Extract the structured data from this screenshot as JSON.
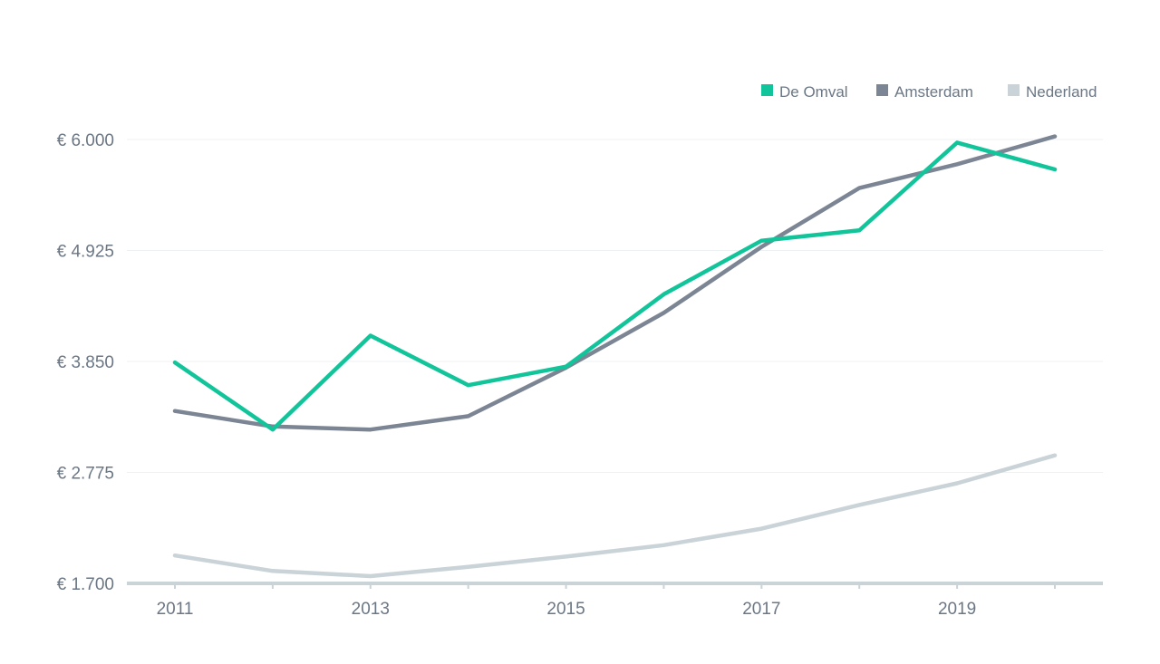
{
  "colors": {
    "De Omval": "#12c49a",
    "Amsterdam": "#7c8594",
    "Nederland": "#c9d3d8",
    "grid": "#eef1f3",
    "axis": "#c9d3d8",
    "text": "#6b7785"
  },
  "chart_data": {
    "type": "line",
    "title": "",
    "xlabel": "",
    "ylabel": "",
    "x": [
      2011,
      2012,
      2013,
      2014,
      2015,
      2016,
      2017,
      2018,
      2019,
      2020
    ],
    "x_ticks": [
      "2011",
      "2013",
      "2015",
      "2017",
      "2019"
    ],
    "y_ticks": [
      "€ 1.700",
      "€ 2.775",
      "€ 3.850",
      "€ 4.925",
      "€ 6.000"
    ],
    "y_tick_values": [
      1700,
      2775,
      3850,
      4925,
      6000
    ],
    "ylim": [
      1700,
      6000
    ],
    "legend_position": "top-right",
    "grid": true,
    "series": [
      {
        "name": "De Omval",
        "values": [
          3840,
          3190,
          4100,
          3620,
          3800,
          4500,
          5020,
          5120,
          5970,
          5710
        ]
      },
      {
        "name": "Amsterdam",
        "values": [
          3370,
          3220,
          3190,
          3320,
          3790,
          4320,
          4960,
          5530,
          5760,
          6030
        ]
      },
      {
        "name": "Nederland",
        "values": [
          1970,
          1820,
          1770,
          1860,
          1960,
          2070,
          2230,
          2460,
          2670,
          2940
        ]
      }
    ]
  }
}
